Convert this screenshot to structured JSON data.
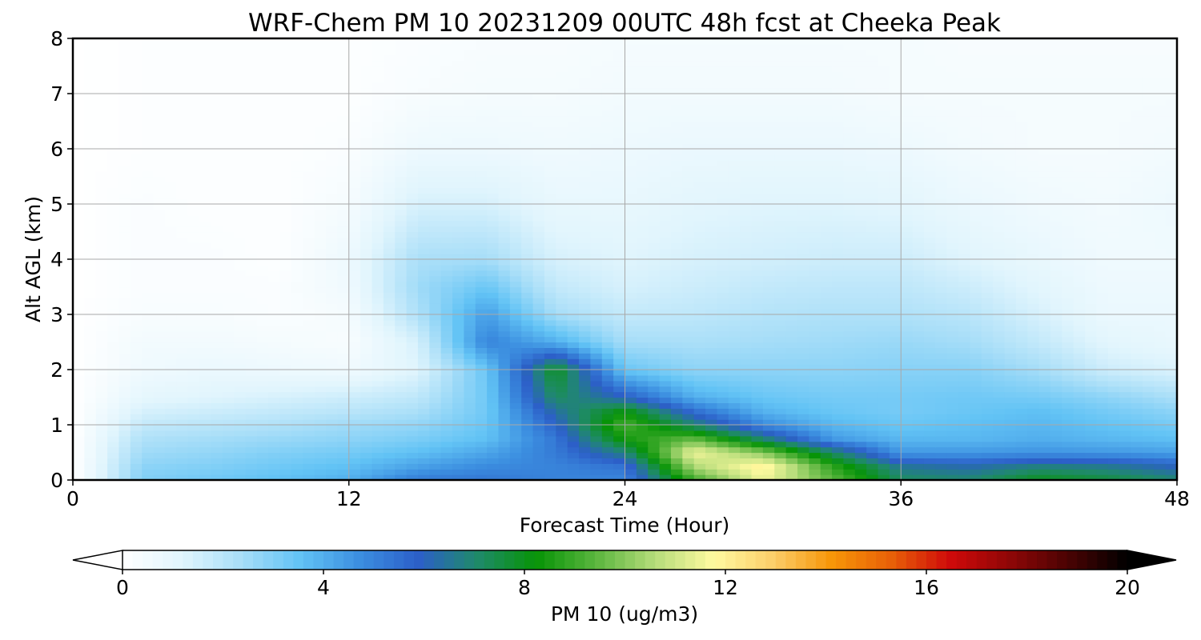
{
  "chart_data": {
    "type": "heatmap",
    "title": "WRF-Chem PM 10  20231209 00UTC 48h fcst at Cheeka Peak",
    "xlabel": "Forecast Time (Hour)",
    "ylabel": "Alt AGL (km)",
    "xlim": [
      0,
      48
    ],
    "ylim": [
      0,
      8
    ],
    "xticks": [
      "0",
      "12",
      "24",
      "36",
      "48"
    ],
    "yticks": [
      "0",
      "1",
      "2",
      "3",
      "4",
      "5",
      "6",
      "7",
      "8"
    ],
    "grid": true,
    "colorbar": {
      "label": "PM 10  (ug/m3)",
      "range": [
        0,
        20
      ],
      "ticks": [
        "0",
        "4",
        "8",
        "12",
        "16",
        "20"
      ],
      "extend": "both",
      "colors": [
        "#ffffff",
        "#e1f5fd",
        "#a8def8",
        "#62c3f5",
        "#3c8fe0",
        "#2c5fc8",
        "#1f8a6a",
        "#079407",
        "#5ab53e",
        "#b5dc7a",
        "#fffaa0",
        "#fbce6a",
        "#f79608",
        "#e86008",
        "#cf0a0a",
        "#8f0707",
        "#4a0303",
        "#000000"
      ]
    },
    "x_hours": [
      0,
      3,
      6,
      9,
      12,
      15,
      18,
      21,
      24,
      27,
      30,
      33,
      36,
      39,
      42,
      45,
      48
    ],
    "y_km": [
      0,
      0.25,
      0.5,
      0.75,
      1,
      1.25,
      1.5,
      2,
      2.5,
      3,
      3.5,
      4,
      5,
      6,
      7,
      8
    ],
    "values_ug_m3": [
      [
        0.0,
        3.0,
        3.3,
        3.6,
        4.0,
        5.2,
        5.3,
        5.0,
        4.9,
        9.0,
        11.5,
        9.5,
        7.2,
        7.0,
        8.0,
        7.6,
        7.0
      ],
      [
        0.0,
        2.8,
        3.0,
        3.3,
        3.6,
        4.3,
        4.8,
        5.0,
        5.4,
        10.5,
        12.0,
        8.8,
        6.5,
        6.2,
        6.8,
        6.6,
        6.0
      ],
      [
        0.0,
        2.5,
        2.7,
        3.0,
        3.2,
        3.6,
        4.2,
        5.2,
        6.8,
        11.6,
        10.0,
        7.2,
        4.5,
        4.5,
        4.6,
        4.5,
        4.3
      ],
      [
        0.0,
        2.2,
        2.4,
        2.6,
        2.8,
        3.1,
        3.6,
        5.3,
        8.4,
        9.5,
        7.0,
        4.5,
        3.8,
        3.8,
        4.0,
        3.8,
        3.6
      ],
      [
        0.0,
        1.8,
        2.0,
        2.2,
        2.5,
        2.7,
        3.4,
        5.8,
        9.2,
        7.0,
        4.8,
        3.8,
        3.4,
        3.6,
        3.8,
        3.5,
        3.2
      ],
      [
        0.0,
        1.4,
        1.6,
        1.8,
        2.0,
        2.3,
        3.3,
        6.4,
        8.2,
        5.5,
        3.9,
        3.4,
        3.2,
        3.4,
        3.6,
        3.2,
        2.8
      ],
      [
        0.0,
        1.0,
        1.2,
        1.4,
        1.6,
        1.9,
        3.3,
        7.2,
        6.0,
        4.0,
        3.4,
        3.2,
        3.2,
        3.3,
        3.2,
        2.8,
        2.3
      ],
      [
        0.0,
        0.6,
        0.8,
        0.7,
        0.6,
        1.2,
        3.4,
        8.0,
        3.4,
        2.8,
        2.8,
        2.8,
        2.9,
        2.9,
        2.4,
        1.6,
        1.3
      ],
      [
        0.0,
        0.5,
        0.5,
        0.4,
        0.3,
        1.4,
        5.0,
        4.0,
        2.4,
        2.3,
        2.4,
        2.5,
        2.6,
        2.4,
        1.8,
        1.1,
        0.9
      ],
      [
        0.0,
        0.3,
        0.3,
        0.2,
        0.4,
        2.2,
        4.4,
        2.4,
        1.8,
        1.9,
        2.1,
        2.2,
        2.2,
        2.0,
        1.4,
        0.8,
        0.8
      ],
      [
        0.0,
        0.2,
        0.2,
        0.2,
        0.6,
        2.5,
        3.4,
        1.8,
        1.4,
        1.6,
        1.8,
        1.9,
        1.9,
        1.6,
        1.1,
        0.7,
        0.7
      ],
      [
        0.0,
        0.2,
        0.2,
        0.1,
        0.7,
        2.3,
        2.4,
        1.4,
        1.2,
        1.4,
        1.5,
        1.6,
        1.6,
        1.2,
        0.9,
        0.6,
        0.6
      ],
      [
        0.0,
        0.2,
        0.1,
        0.1,
        0.4,
        1.4,
        1.4,
        0.9,
        0.9,
        1.1,
        1.2,
        1.2,
        1.1,
        0.8,
        0.6,
        0.5,
        0.7
      ],
      [
        0.0,
        0.1,
        0.1,
        0.1,
        0.2,
        0.7,
        0.7,
        0.6,
        0.7,
        0.8,
        0.8,
        0.8,
        0.7,
        0.5,
        0.4,
        0.4,
        0.5
      ],
      [
        0.0,
        0.1,
        0.1,
        0.1,
        0.1,
        0.3,
        0.4,
        0.4,
        0.5,
        0.5,
        0.5,
        0.5,
        0.4,
        0.4,
        0.4,
        0.4,
        0.4
      ],
      [
        0.0,
        0.1,
        0.1,
        0.1,
        0.1,
        0.2,
        0.3,
        0.3,
        0.4,
        0.4,
        0.4,
        0.4,
        0.4,
        0.3,
        0.3,
        0.3,
        0.3
      ]
    ]
  }
}
